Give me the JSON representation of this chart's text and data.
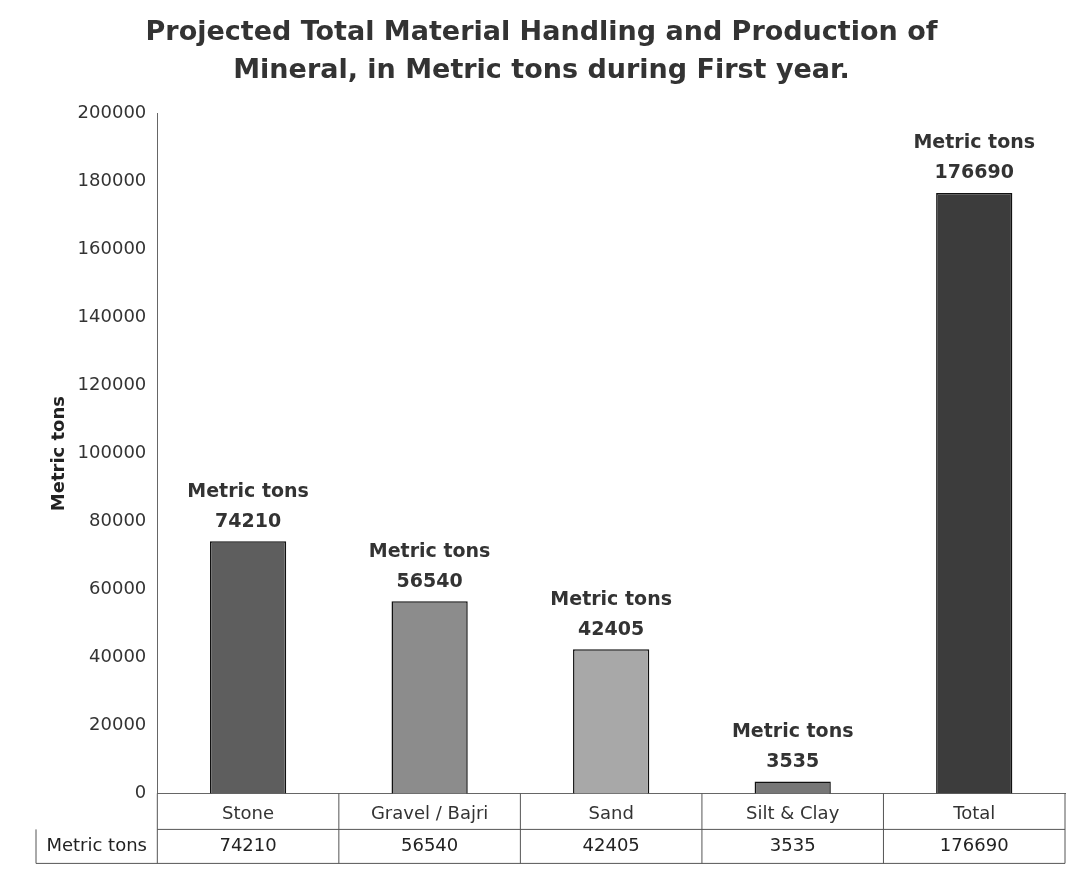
{
  "chart_data": {
    "type": "bar",
    "title": "Projected Total Material Handling and Production of Mineral, in Metric tons during First  year.",
    "ylabel": "Metric tons",
    "categories": [
      "Stone",
      "Gravel / Bajri",
      "Sand",
      "Silt & Clay",
      "Total"
    ],
    "series": [
      {
        "name": "Metric tons",
        "colors": [
          "#5e5e5e",
          "#8c8c8c",
          "#a8a8a8",
          "#777777",
          "#3c3c3c"
        ],
        "values": [
          74210,
          56540,
          42405,
          3535,
          176690
        ]
      }
    ],
    "annotations": [
      {
        "text": "74210",
        "x": "Stone",
        "y": 74210
      },
      {
        "text": "56540",
        "x": "Gravel / Bajri",
        "y": 56540
      },
      {
        "text": "42405",
        "x": "Sand",
        "y": 42405
      },
      {
        "text": "3535",
        "x": "Silt & Clay",
        "y": 3535
      },
      {
        "text": "176690",
        "x": "Total",
        "y": 176690
      }
    ],
    "ylim": [
      0,
      200000
    ],
    "yticks": [
      0,
      20000,
      40000,
      60000,
      80000,
      100000,
      120000,
      140000,
      160000,
      180000,
      200000
    ],
    "grid": false,
    "data_labels": true
  }
}
